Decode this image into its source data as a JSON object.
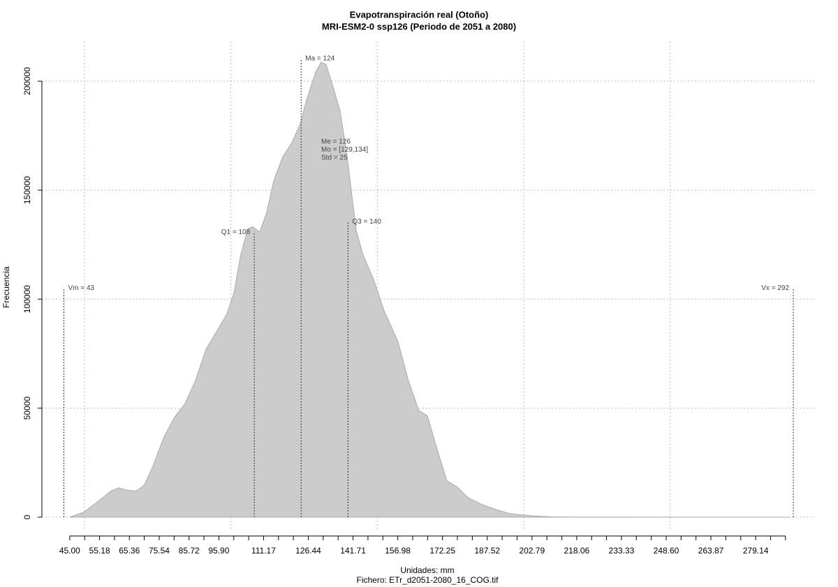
{
  "chart_data": {
    "type": "area",
    "title": "Evapotranspiración real (Otoño)",
    "subtitle": "MRI-ESM2-0 ssp126 (Periodo de 2051 a 2080)",
    "x_label": "Unidades: mm",
    "caption": "Fichero: ETr_d2051-2080_16_COG.tif",
    "y_label": "Frecuencia",
    "color": "#cccccc",
    "x": [
      45,
      49.8,
      54.5,
      59.3,
      61.7,
      64.1,
      67.7,
      70.5,
      73.6,
      77.2,
      80.8,
      84.3,
      87.9,
      91.5,
      95.1,
      98.6,
      101.0,
      103.4,
      105.8,
      107.5,
      109.8,
      112.2,
      114.6,
      117.7,
      120.8,
      123.7,
      126.1,
      128.9,
      130.8,
      132.5,
      134.9,
      137.3,
      139.7,
      142.8,
      145.1,
      148.7,
      152.3,
      157.1,
      160.6,
      164.2,
      167.1,
      170.2,
      173.7,
      177.3,
      180.9,
      185.7,
      190.4,
      195.2,
      202.4,
      209.5,
      219.1,
      290.6
    ],
    "values": [
      0,
      2250,
      7060,
      12200,
      13480,
      12500,
      11900,
      14770,
      24080,
      36900,
      45900,
      52000,
      62600,
      77000,
      85070,
      93100,
      102700,
      120400,
      132300,
      133200,
      130700,
      139600,
      154100,
      165300,
      171700,
      180400,
      192600,
      203900,
      208700,
      207700,
      197400,
      186200,
      165300,
      131600,
      120400,
      109100,
      94700,
      80300,
      62600,
      48800,
      46500,
      32100,
      16700,
      13800,
      8990,
      5780,
      3530,
      1610,
      640,
      130,
      50,
      0
    ],
    "xlim": [
      35.5,
      300.1
    ],
    "ylim": [
      -6400,
      218000
    ],
    "yticks": [
      0,
      50000,
      100000,
      150000,
      200000
    ],
    "xticks": [
      {
        "value": 45,
        "label": "45.00"
      },
      55.18,
      65.36,
      75.54,
      85.72,
      {
        "value": 95.9,
        "label": "95.90"
      },
      111.17,
      126.44,
      141.71,
      156.98,
      172.25,
      187.52,
      202.79,
      218.06,
      233.33,
      {
        "value": 248.6,
        "label": "248.60"
      },
      263.87,
      279.14
    ],
    "xminorticks": [
      45,
      50.09,
      55.18,
      60.27,
      65.36,
      70.45,
      75.54,
      80.63,
      85.72,
      90.81,
      95.9,
      100.99,
      106.08,
      111.17,
      116.26,
      121.35,
      126.44,
      131.53,
      136.62,
      141.71,
      146.8,
      151.89,
      156.98,
      162.07,
      167.16,
      172.25,
      177.34,
      182.43,
      187.52,
      192.61,
      197.7,
      202.79,
      207.88,
      212.97,
      218.06,
      223.15,
      228.24,
      233.33,
      238.42,
      243.51,
      248.6,
      253.69,
      258.78,
      263.87,
      268.96,
      274.05,
      279.14,
      284.23,
      289.32
    ],
    "xgrid": [
      50,
      100,
      150,
      200,
      250
    ],
    "grid": true,
    "annotations": [
      {
        "label": "Vm = 43",
        "x": 43,
        "y": 105000,
        "side": "right"
      },
      {
        "label": "Q1 = 108",
        "x": 108,
        "y": 130700,
        "side": "left"
      },
      {
        "label": "Ma = 124",
        "x": 124,
        "y": 210300,
        "side": "right"
      },
      {
        "label": "Q3 = 140",
        "x": 140,
        "y": 135500,
        "side": "right"
      },
      {
        "label": "Vx = 292",
        "x": 292,
        "y": 105000,
        "side": "left"
      }
    ],
    "stats": [
      "Me = 126",
      "Mo = [129,134]",
      "Std = 25"
    ]
  }
}
